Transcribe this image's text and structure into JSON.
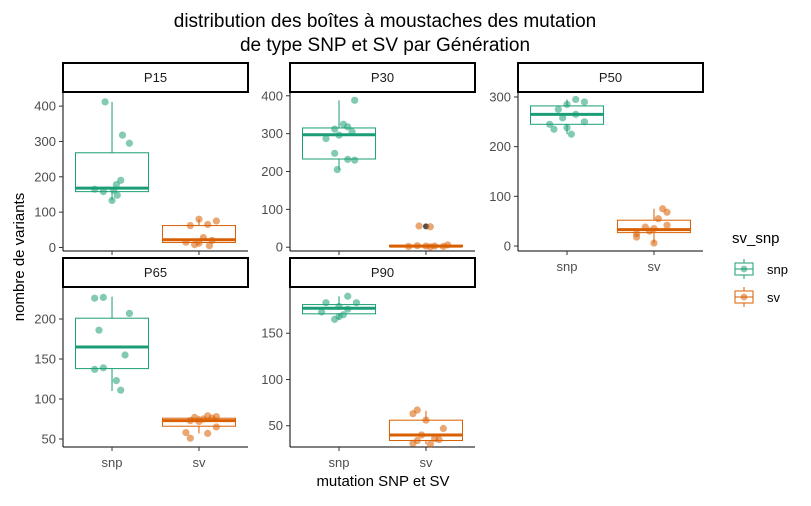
{
  "chart_data": {
    "type": "box",
    "title_lines": [
      "distribution des boîtes à moustaches des mutation",
      "de type SNP et SV par Génération"
    ],
    "xlabel": "mutation SNP et SV",
    "ylabel": "nombre de variants",
    "categories": [
      "snp",
      "sv"
    ],
    "legend": {
      "title": "sv_snp",
      "position": "right",
      "entries": [
        {
          "label": "snp",
          "color": "#1b9e77"
        },
        {
          "label": "sv",
          "color": "#d95f02"
        }
      ]
    },
    "grid": false,
    "panels": [
      {
        "label": "P15",
        "ylim": [
          -10,
          440
        ],
        "yticks": [
          0,
          100,
          200,
          300,
          400
        ],
        "boxes": [
          {
            "group": "snp",
            "whisker_low": 133,
            "q1": 158,
            "median": 168,
            "q3": 268,
            "whisker_high": 412,
            "outliers": [],
            "points": [
              [
                -0.08,
                412
              ],
              [
                0.12,
                318
              ],
              [
                0.2,
                295
              ],
              [
                0.1,
                190
              ],
              [
                0.05,
                178
              ],
              [
                -0.2,
                165
              ],
              [
                0.02,
                162
              ],
              [
                -0.1,
                158
              ],
              [
                0.06,
                148
              ],
              [
                0.0,
                133
              ]
            ]
          },
          {
            "group": "sv",
            "whisker_low": 8,
            "q1": 14,
            "median": 22,
            "q3": 62,
            "whisker_high": 80,
            "outliers": [],
            "points": [
              [
                0.0,
                80
              ],
              [
                0.2,
                75
              ],
              [
                0.1,
                65
              ],
              [
                -0.1,
                62
              ],
              [
                0.05,
                28
              ],
              [
                0.15,
                20
              ],
              [
                -0.15,
                15
              ],
              [
                0.0,
                12
              ],
              [
                -0.05,
                8
              ],
              [
                0.12,
                5
              ]
            ]
          }
        ]
      },
      {
        "label": "P30",
        "ylim": [
          -10,
          410
        ],
        "yticks": [
          0,
          100,
          200,
          300,
          400
        ],
        "boxes": [
          {
            "group": "snp",
            "whisker_low": 205,
            "q1": 233,
            "median": 297,
            "q3": 315,
            "whisker_high": 388,
            "outliers": [],
            "points": [
              [
                0.18,
                388
              ],
              [
                0.05,
                325
              ],
              [
                0.1,
                318
              ],
              [
                -0.05,
                312
              ],
              [
                0.15,
                305
              ],
              [
                0.0,
                296
              ],
              [
                -0.15,
                287
              ],
              [
                -0.05,
                248
              ],
              [
                0.1,
                232
              ],
              [
                0.18,
                230
              ],
              [
                -0.02,
                205
              ]
            ]
          },
          {
            "group": "sv",
            "whisker_low": 0,
            "q1": 2,
            "median": 3,
            "q3": 5,
            "whisker_high": 7,
            "outliers": [
              55
            ],
            "points": [
              [
                -0.08,
                56
              ],
              [
                0.05,
                54
              ],
              [
                0.25,
                6
              ],
              [
                -0.1,
                4
              ],
              [
                0.0,
                3
              ],
              [
                0.1,
                3
              ],
              [
                -0.2,
                2
              ],
              [
                0.2,
                2
              ],
              [
                0.05,
                1
              ]
            ]
          }
        ]
      },
      {
        "label": "P50",
        "ylim": [
          -10,
          310
        ],
        "yticks": [
          0,
          100,
          200,
          300
        ],
        "boxes": [
          {
            "group": "snp",
            "whisker_low": 225,
            "q1": 245,
            "median": 265,
            "q3": 282,
            "whisker_high": 295,
            "outliers": [],
            "points": [
              [
                0.1,
                295
              ],
              [
                0.2,
                290
              ],
              [
                0.0,
                285
              ],
              [
                -0.1,
                275
              ],
              [
                0.1,
                265
              ],
              [
                -0.05,
                258
              ],
              [
                0.2,
                250
              ],
              [
                -0.2,
                245
              ],
              [
                0.0,
                238
              ],
              [
                -0.15,
                235
              ],
              [
                0.05,
                225
              ]
            ]
          },
          {
            "group": "sv",
            "whisker_low": 5,
            "q1": 27,
            "median": 33,
            "q3": 52,
            "whisker_high": 75,
            "outliers": [],
            "points": [
              [
                0.1,
                75
              ],
              [
                0.15,
                68
              ],
              [
                0.05,
                55
              ],
              [
                0.15,
                42
              ],
              [
                -0.1,
                38
              ],
              [
                0.0,
                35
              ],
              [
                -0.05,
                30
              ],
              [
                -0.2,
                25
              ],
              [
                -0.2,
                18
              ],
              [
                0.0,
                6
              ]
            ]
          }
        ]
      },
      {
        "label": "P65",
        "ylim": [
          40,
          240
        ],
        "yticks": [
          50,
          100,
          150,
          200
        ],
        "boxes": [
          {
            "group": "snp",
            "whisker_low": 110,
            "q1": 138,
            "median": 165,
            "q3": 201,
            "whisker_high": 228,
            "outliers": [],
            "points": [
              [
                -0.2,
                226
              ],
              [
                -0.1,
                227
              ],
              [
                0.2,
                207
              ],
              [
                -0.15,
                186
              ],
              [
                0.15,
                155
              ],
              [
                -0.1,
                139
              ],
              [
                -0.2,
                137
              ],
              [
                0.05,
                123
              ],
              [
                0.1,
                111
              ]
            ]
          },
          {
            "group": "sv",
            "whisker_low": 57,
            "q1": 66,
            "median": 73,
            "q3": 76,
            "whisker_high": 79,
            "outliers": [],
            "points": [
              [
                0.1,
                79
              ],
              [
                0.2,
                78
              ],
              [
                -0.05,
                77
              ],
              [
                0.15,
                76
              ],
              [
                0.05,
                75
              ],
              [
                -0.1,
                73
              ],
              [
                0.0,
                72
              ],
              [
                0.2,
                65
              ],
              [
                0.1,
                57
              ],
              [
                -0.15,
                58
              ],
              [
                -0.1,
                51
              ]
            ]
          }
        ]
      },
      {
        "label": "P90",
        "ylim": [
          27,
          200
        ],
        "yticks": [
          50,
          100,
          150
        ],
        "boxes": [
          {
            "group": "snp",
            "whisker_low": 165,
            "q1": 171,
            "median": 177,
            "q3": 181,
            "whisker_high": 190,
            "outliers": [],
            "points": [
              [
                0.1,
                190
              ],
              [
                -0.15,
                183
              ],
              [
                0.2,
                183
              ],
              [
                0.0,
                179
              ],
              [
                0.1,
                176
              ],
              [
                -0.2,
                173
              ],
              [
                0.05,
                170
              ],
              [
                0.0,
                168
              ],
              [
                -0.05,
                165
              ]
            ]
          },
          {
            "group": "sv",
            "whisker_low": 30,
            "q1": 34,
            "median": 40,
            "q3": 56,
            "whisker_high": 66,
            "outliers": [],
            "points": [
              [
                -0.1,
                67
              ],
              [
                -0.15,
                63
              ],
              [
                0.0,
                56
              ],
              [
                0.2,
                47
              ],
              [
                -0.05,
                40
              ],
              [
                0.1,
                36
              ],
              [
                0.15,
                35
              ],
              [
                -0.1,
                34
              ],
              [
                -0.15,
                31
              ],
              [
                0.05,
                30
              ]
            ]
          }
        ]
      }
    ]
  }
}
